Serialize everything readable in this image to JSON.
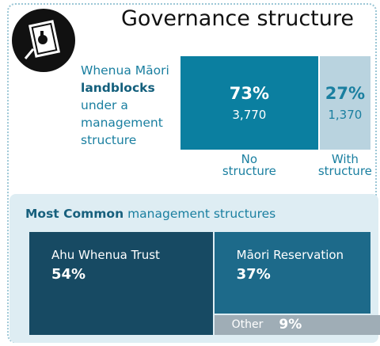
{
  "header": {
    "title": "Governance structure"
  },
  "description": {
    "line1": "Whenua Māori",
    "bold": "landblocks",
    "line3": "under a",
    "line4": "management",
    "line5": "structure"
  },
  "split": [
    {
      "percent": 73,
      "percent_label": "73%",
      "count": "3,770",
      "label_1": "No",
      "label_2": "structure"
    },
    {
      "percent": 27,
      "percent_label": "27%",
      "count": "1,370",
      "label_1": "With",
      "label_2": "structure"
    }
  ],
  "common": {
    "title_bold": "Most Common",
    "title_rest": "management structures",
    "items": [
      {
        "name": "Ahu Whenua Trust",
        "percent": 54,
        "label": "54%"
      },
      {
        "name": "Māori Reservation",
        "percent": 37,
        "label": "37%"
      },
      {
        "name": "Other",
        "percent": 9,
        "label": "9%"
      }
    ]
  }
}
